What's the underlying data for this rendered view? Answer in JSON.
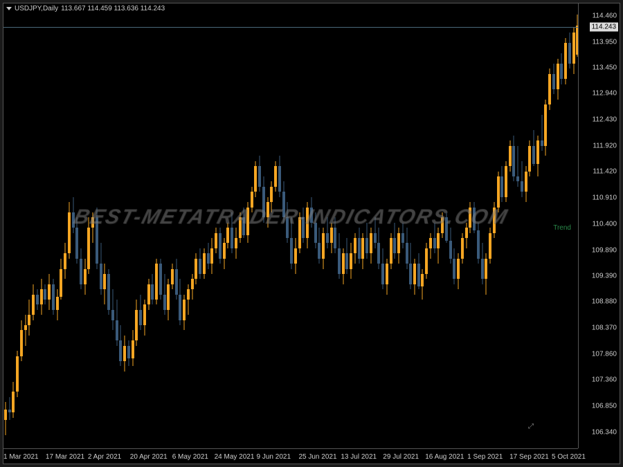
{
  "header": {
    "symbol": "USDJPY,Daily",
    "ohlc": "113.667 114.459 113.636 114.243"
  },
  "watermark": "BEST-METATRADER-INDICATORS.COM",
  "green_label": "Trend",
  "chart": {
    "type": "candlestick",
    "background_color": "#000000",
    "border_color": "#555555",
    "text_color": "#cccccc",
    "up_color": "#f5a623",
    "down_color": "#3a5a7a",
    "wick_up_color": "#f5a623",
    "wick_down_color": "#3a5a7a",
    "price_line_color": "#4a6a7a",
    "ylim": [
      106.0,
      114.7
    ],
    "current_price": 114.243,
    "y_ticks": [
      114.46,
      113.95,
      113.45,
      112.94,
      112.43,
      111.92,
      111.42,
      110.91,
      110.4,
      109.89,
      109.39,
      108.88,
      108.37,
      107.86,
      107.36,
      106.85,
      106.34
    ],
    "x_ticks": [
      "1 Mar 2021",
      "17 Mar 2021",
      "2 Apr 2021",
      "20 Apr 2021",
      "6 May 2021",
      "24 May 2021",
      "9 Jun 2021",
      "25 Jun 2021",
      "13 Jul 2021",
      "29 Jul 2021",
      "16 Aug 2021",
      "1 Sep 2021",
      "17 Sep 2021",
      "5 Oct 2021"
    ],
    "candle_width": 4,
    "candles": [
      {
        "o": 106.55,
        "h": 106.9,
        "l": 106.25,
        "c": 106.75
      },
      {
        "o": 106.75,
        "h": 107.0,
        "l": 106.55,
        "c": 106.7
      },
      {
        "o": 106.7,
        "h": 107.3,
        "l": 106.6,
        "c": 107.1
      },
      {
        "o": 107.1,
        "h": 107.9,
        "l": 107.0,
        "c": 107.8
      },
      {
        "o": 107.8,
        "h": 108.5,
        "l": 107.7,
        "c": 108.3
      },
      {
        "o": 108.3,
        "h": 108.6,
        "l": 108.0,
        "c": 108.4
      },
      {
        "o": 108.4,
        "h": 108.9,
        "l": 108.2,
        "c": 108.6
      },
      {
        "o": 108.6,
        "h": 109.2,
        "l": 108.5,
        "c": 109.0
      },
      {
        "o": 109.0,
        "h": 109.1,
        "l": 108.7,
        "c": 108.8
      },
      {
        "o": 108.8,
        "h": 109.3,
        "l": 108.6,
        "c": 109.1
      },
      {
        "o": 109.1,
        "h": 109.2,
        "l": 108.8,
        "c": 108.9
      },
      {
        "o": 108.9,
        "h": 109.4,
        "l": 108.7,
        "c": 109.2
      },
      {
        "o": 109.2,
        "h": 109.3,
        "l": 108.6,
        "c": 108.7
      },
      {
        "o": 108.7,
        "h": 109.1,
        "l": 108.5,
        "c": 108.95
      },
      {
        "o": 108.95,
        "h": 109.7,
        "l": 108.9,
        "c": 109.5
      },
      {
        "o": 109.5,
        "h": 110.0,
        "l": 109.3,
        "c": 109.8
      },
      {
        "o": 109.8,
        "h": 110.8,
        "l": 109.7,
        "c": 110.6
      },
      {
        "o": 110.6,
        "h": 110.9,
        "l": 110.2,
        "c": 110.3
      },
      {
        "o": 110.3,
        "h": 110.5,
        "l": 109.6,
        "c": 109.7
      },
      {
        "o": 109.7,
        "h": 109.9,
        "l": 109.1,
        "c": 109.2
      },
      {
        "o": 109.2,
        "h": 109.7,
        "l": 109.0,
        "c": 109.5
      },
      {
        "o": 109.5,
        "h": 110.5,
        "l": 109.4,
        "c": 110.3
      },
      {
        "o": 110.3,
        "h": 110.6,
        "l": 110.0,
        "c": 110.5
      },
      {
        "o": 110.5,
        "h": 110.7,
        "l": 109.5,
        "c": 109.6
      },
      {
        "o": 109.6,
        "h": 110.0,
        "l": 109.0,
        "c": 109.1
      },
      {
        "o": 109.1,
        "h": 109.6,
        "l": 108.8,
        "c": 109.4
      },
      {
        "o": 109.4,
        "h": 109.5,
        "l": 108.6,
        "c": 108.7
      },
      {
        "o": 108.7,
        "h": 109.1,
        "l": 108.3,
        "c": 108.5
      },
      {
        "o": 108.5,
        "h": 108.9,
        "l": 108.0,
        "c": 108.1
      },
      {
        "o": 108.1,
        "h": 108.4,
        "l": 107.6,
        "c": 107.7
      },
      {
        "o": 107.7,
        "h": 108.2,
        "l": 107.5,
        "c": 108.0
      },
      {
        "o": 108.0,
        "h": 108.1,
        "l": 107.6,
        "c": 107.75
      },
      {
        "o": 107.75,
        "h": 108.3,
        "l": 107.6,
        "c": 108.1
      },
      {
        "o": 108.1,
        "h": 108.9,
        "l": 108.0,
        "c": 108.7
      },
      {
        "o": 108.7,
        "h": 109.0,
        "l": 108.3,
        "c": 108.4
      },
      {
        "o": 108.4,
        "h": 108.9,
        "l": 108.2,
        "c": 108.8
      },
      {
        "o": 108.8,
        "h": 109.3,
        "l": 108.7,
        "c": 109.2
      },
      {
        "o": 109.2,
        "h": 109.4,
        "l": 108.8,
        "c": 108.9
      },
      {
        "o": 108.9,
        "h": 109.7,
        "l": 108.8,
        "c": 109.6
      },
      {
        "o": 109.6,
        "h": 109.7,
        "l": 108.9,
        "c": 109.0
      },
      {
        "o": 109.0,
        "h": 109.4,
        "l": 108.6,
        "c": 108.7
      },
      {
        "o": 108.7,
        "h": 109.3,
        "l": 108.5,
        "c": 109.2
      },
      {
        "o": 109.2,
        "h": 109.6,
        "l": 109.1,
        "c": 109.5
      },
      {
        "o": 109.5,
        "h": 109.7,
        "l": 108.9,
        "c": 109.0
      },
      {
        "o": 109.0,
        "h": 109.3,
        "l": 108.4,
        "c": 108.5
      },
      {
        "o": 108.5,
        "h": 109.0,
        "l": 108.3,
        "c": 108.9
      },
      {
        "o": 108.9,
        "h": 109.2,
        "l": 108.6,
        "c": 109.1
      },
      {
        "o": 109.1,
        "h": 109.4,
        "l": 108.9,
        "c": 109.3
      },
      {
        "o": 109.3,
        "h": 109.8,
        "l": 109.2,
        "c": 109.7
      },
      {
        "o": 109.7,
        "h": 109.9,
        "l": 109.3,
        "c": 109.4
      },
      {
        "o": 109.4,
        "h": 109.9,
        "l": 109.3,
        "c": 109.8
      },
      {
        "o": 109.8,
        "h": 110.0,
        "l": 109.5,
        "c": 109.6
      },
      {
        "o": 109.6,
        "h": 110.1,
        "l": 109.4,
        "c": 109.9
      },
      {
        "o": 109.9,
        "h": 110.3,
        "l": 109.8,
        "c": 110.2
      },
      {
        "o": 110.2,
        "h": 110.3,
        "l": 109.6,
        "c": 109.7
      },
      {
        "o": 109.7,
        "h": 110.1,
        "l": 109.5,
        "c": 110.0
      },
      {
        "o": 110.0,
        "h": 110.4,
        "l": 109.9,
        "c": 110.3
      },
      {
        "o": 110.3,
        "h": 110.6,
        "l": 109.8,
        "c": 109.9
      },
      {
        "o": 109.9,
        "h": 110.3,
        "l": 109.7,
        "c": 110.1
      },
      {
        "o": 110.1,
        "h": 110.6,
        "l": 110.0,
        "c": 110.5
      },
      {
        "o": 110.5,
        "h": 110.7,
        "l": 110.1,
        "c": 110.15
      },
      {
        "o": 110.15,
        "h": 110.8,
        "l": 110.0,
        "c": 110.7
      },
      {
        "o": 110.7,
        "h": 111.1,
        "l": 110.6,
        "c": 111.0
      },
      {
        "o": 111.0,
        "h": 111.6,
        "l": 110.9,
        "c": 111.5
      },
      {
        "o": 111.5,
        "h": 111.7,
        "l": 111.0,
        "c": 111.1
      },
      {
        "o": 111.1,
        "h": 111.3,
        "l": 110.4,
        "c": 110.5
      },
      {
        "o": 110.5,
        "h": 110.9,
        "l": 110.3,
        "c": 110.8
      },
      {
        "o": 110.8,
        "h": 111.2,
        "l": 110.6,
        "c": 111.1
      },
      {
        "o": 111.1,
        "h": 111.6,
        "l": 111.0,
        "c": 111.5
      },
      {
        "o": 111.5,
        "h": 111.7,
        "l": 110.9,
        "c": 111.0
      },
      {
        "o": 111.0,
        "h": 111.2,
        "l": 110.4,
        "c": 110.5
      },
      {
        "o": 110.5,
        "h": 110.8,
        "l": 110.0,
        "c": 110.1
      },
      {
        "o": 110.1,
        "h": 110.5,
        "l": 109.5,
        "c": 109.6
      },
      {
        "o": 109.6,
        "h": 110.1,
        "l": 109.4,
        "c": 109.9
      },
      {
        "o": 109.9,
        "h": 110.6,
        "l": 109.8,
        "c": 110.5
      },
      {
        "o": 110.5,
        "h": 110.7,
        "l": 110.0,
        "c": 110.1
      },
      {
        "o": 110.1,
        "h": 110.8,
        "l": 109.9,
        "c": 110.7
      },
      {
        "o": 110.7,
        "h": 110.9,
        "l": 110.3,
        "c": 110.4
      },
      {
        "o": 110.4,
        "h": 110.6,
        "l": 109.9,
        "c": 110.0
      },
      {
        "o": 110.0,
        "h": 110.3,
        "l": 109.6,
        "c": 109.7
      },
      {
        "o": 109.7,
        "h": 110.3,
        "l": 109.5,
        "c": 110.2
      },
      {
        "o": 110.2,
        "h": 110.5,
        "l": 109.9,
        "c": 110.0
      },
      {
        "o": 110.0,
        "h": 110.4,
        "l": 109.8,
        "c": 110.3
      },
      {
        "o": 110.3,
        "h": 110.5,
        "l": 109.8,
        "c": 109.9
      },
      {
        "o": 109.9,
        "h": 110.2,
        "l": 109.3,
        "c": 109.4
      },
      {
        "o": 109.4,
        "h": 109.9,
        "l": 109.2,
        "c": 109.8
      },
      {
        "o": 109.8,
        "h": 110.1,
        "l": 109.4,
        "c": 109.5
      },
      {
        "o": 109.5,
        "h": 110.0,
        "l": 109.3,
        "c": 109.8
      },
      {
        "o": 109.8,
        "h": 110.2,
        "l": 109.6,
        "c": 110.1
      },
      {
        "o": 110.1,
        "h": 110.3,
        "l": 109.6,
        "c": 109.7
      },
      {
        "o": 109.7,
        "h": 110.2,
        "l": 109.5,
        "c": 110.1
      },
      {
        "o": 110.1,
        "h": 110.4,
        "l": 109.7,
        "c": 109.8
      },
      {
        "o": 109.8,
        "h": 110.3,
        "l": 109.6,
        "c": 110.2
      },
      {
        "o": 110.2,
        "h": 110.5,
        "l": 109.9,
        "c": 110.0
      },
      {
        "o": 110.0,
        "h": 110.3,
        "l": 109.5,
        "c": 109.6
      },
      {
        "o": 109.6,
        "h": 109.9,
        "l": 109.1,
        "c": 109.2
      },
      {
        "o": 109.2,
        "h": 109.7,
        "l": 109.0,
        "c": 109.6
      },
      {
        "o": 109.6,
        "h": 110.2,
        "l": 109.5,
        "c": 110.1
      },
      {
        "o": 110.1,
        "h": 110.4,
        "l": 109.7,
        "c": 109.8
      },
      {
        "o": 109.8,
        "h": 110.3,
        "l": 109.6,
        "c": 110.2
      },
      {
        "o": 110.2,
        "h": 110.4,
        "l": 109.9,
        "c": 110.0
      },
      {
        "o": 110.0,
        "h": 110.3,
        "l": 109.5,
        "c": 109.6
      },
      {
        "o": 109.6,
        "h": 110.0,
        "l": 109.1,
        "c": 109.2
      },
      {
        "o": 109.2,
        "h": 109.7,
        "l": 109.0,
        "c": 109.6
      },
      {
        "o": 109.6,
        "h": 109.8,
        "l": 109.1,
        "c": 109.15
      },
      {
        "o": 109.15,
        "h": 109.5,
        "l": 108.9,
        "c": 109.4
      },
      {
        "o": 109.4,
        "h": 110.0,
        "l": 109.3,
        "c": 109.9
      },
      {
        "o": 109.9,
        "h": 110.2,
        "l": 109.7,
        "c": 110.1
      },
      {
        "o": 110.1,
        "h": 110.4,
        "l": 109.8,
        "c": 109.9
      },
      {
        "o": 109.9,
        "h": 110.3,
        "l": 109.6,
        "c": 110.2
      },
      {
        "o": 110.2,
        "h": 110.6,
        "l": 110.1,
        "c": 110.5
      },
      {
        "o": 110.5,
        "h": 110.6,
        "l": 110.0,
        "c": 110.05
      },
      {
        "o": 110.05,
        "h": 110.3,
        "l": 109.6,
        "c": 109.7
      },
      {
        "o": 109.7,
        "h": 109.9,
        "l": 109.2,
        "c": 109.3
      },
      {
        "o": 109.3,
        "h": 109.8,
        "l": 109.1,
        "c": 109.7
      },
      {
        "o": 109.7,
        "h": 110.2,
        "l": 109.6,
        "c": 110.1
      },
      {
        "o": 110.1,
        "h": 110.4,
        "l": 109.9,
        "c": 110.3
      },
      {
        "o": 110.3,
        "h": 110.8,
        "l": 110.2,
        "c": 110.7
      },
      {
        "o": 110.7,
        "h": 110.8,
        "l": 110.2,
        "c": 110.25
      },
      {
        "o": 110.25,
        "h": 110.4,
        "l": 109.6,
        "c": 109.7
      },
      {
        "o": 109.7,
        "h": 110.0,
        "l": 109.2,
        "c": 109.3
      },
      {
        "o": 109.3,
        "h": 109.8,
        "l": 109.0,
        "c": 109.7
      },
      {
        "o": 109.7,
        "h": 110.3,
        "l": 109.6,
        "c": 110.2
      },
      {
        "o": 110.2,
        "h": 110.8,
        "l": 110.1,
        "c": 110.7
      },
      {
        "o": 110.7,
        "h": 111.4,
        "l": 110.6,
        "c": 111.3
      },
      {
        "o": 111.3,
        "h": 111.5,
        "l": 110.8,
        "c": 110.9
      },
      {
        "o": 110.9,
        "h": 111.6,
        "l": 110.8,
        "c": 111.5
      },
      {
        "o": 111.5,
        "h": 112.0,
        "l": 111.4,
        "c": 111.9
      },
      {
        "o": 111.9,
        "h": 112.1,
        "l": 111.2,
        "c": 111.3
      },
      {
        "o": 111.3,
        "h": 111.9,
        "l": 111.1,
        "c": 111.2
      },
      {
        "o": 111.2,
        "h": 111.6,
        "l": 110.9,
        "c": 111.0
      },
      {
        "o": 111.0,
        "h": 111.5,
        "l": 110.8,
        "c": 111.4
      },
      {
        "o": 111.4,
        "h": 112.0,
        "l": 111.3,
        "c": 111.9
      },
      {
        "o": 111.9,
        "h": 112.2,
        "l": 111.5,
        "c": 111.55
      },
      {
        "o": 111.55,
        "h": 112.1,
        "l": 111.3,
        "c": 112.0
      },
      {
        "o": 112.0,
        "h": 112.5,
        "l": 111.8,
        "c": 111.9
      },
      {
        "o": 111.9,
        "h": 112.8,
        "l": 111.7,
        "c": 112.7
      },
      {
        "o": 112.7,
        "h": 113.4,
        "l": 112.6,
        "c": 113.3
      },
      {
        "o": 113.3,
        "h": 113.5,
        "l": 112.9,
        "c": 113.0
      },
      {
        "o": 113.0,
        "h": 113.6,
        "l": 112.8,
        "c": 113.5
      },
      {
        "o": 113.5,
        "h": 113.7,
        "l": 113.1,
        "c": 113.2
      },
      {
        "o": 113.2,
        "h": 114.0,
        "l": 113.1,
        "c": 113.9
      },
      {
        "o": 113.9,
        "h": 114.1,
        "l": 113.4,
        "c": 113.5
      },
      {
        "o": 113.5,
        "h": 114.2,
        "l": 113.3,
        "c": 114.1
      },
      {
        "o": 113.67,
        "h": 114.46,
        "l": 113.64,
        "c": 114.24
      }
    ]
  }
}
